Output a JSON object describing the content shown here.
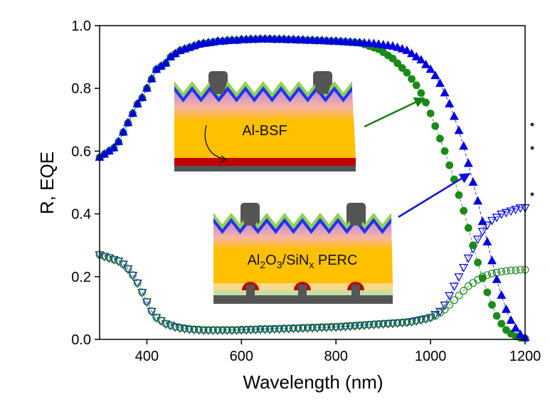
{
  "chart_data": {
    "type": "scatter-line",
    "x_label": "Wavelength (nm)",
    "y_label": "R, EQE",
    "xlim": [
      300,
      1200
    ],
    "xticks": [
      400,
      600,
      800,
      1000,
      1200
    ],
    "ylim": [
      0,
      1
    ],
    "yticks": [
      {
        "value": 0,
        "label": "0.0"
      },
      0.2,
      0.4,
      0.6,
      0.8,
      {
        "value": 1,
        "label": "1.0"
      }
    ],
    "x": [
      300,
      310,
      320,
      330,
      340,
      350,
      360,
      370,
      380,
      390,
      400,
      410,
      420,
      430,
      440,
      450,
      460,
      470,
      480,
      490,
      500,
      510,
      520,
      530,
      540,
      550,
      560,
      570,
      580,
      590,
      600,
      610,
      620,
      630,
      640,
      650,
      660,
      670,
      680,
      690,
      700,
      710,
      720,
      730,
      740,
      750,
      760,
      770,
      780,
      790,
      800,
      810,
      820,
      830,
      840,
      850,
      860,
      870,
      880,
      890,
      900,
      910,
      920,
      930,
      940,
      950,
      960,
      970,
      980,
      990,
      1000,
      1010,
      1020,
      1030,
      1040,
      1050,
      1060,
      1070,
      1080,
      1090,
      1100,
      1110,
      1120,
      1130,
      1140,
      1150,
      1160,
      1170,
      1180,
      1190,
      1200
    ],
    "series": [
      {
        "color": "#0000e0",
        "marker": "triangle-down",
        "filled": false,
        "values": [
          0.27,
          0.265,
          0.26,
          0.255,
          0.25,
          0.24,
          0.225,
          0.205,
          0.18,
          0.15,
          0.12,
          0.09,
          0.07,
          0.06,
          0.05,
          0.045,
          0.04,
          0.037,
          0.035,
          0.033,
          0.032,
          0.031,
          0.03,
          0.03,
          0.03,
          0.03,
          0.03,
          0.03,
          0.03,
          0.03,
          0.031,
          0.031,
          0.032,
          0.032,
          0.033,
          0.033,
          0.033,
          0.034,
          0.034,
          0.035,
          0.035,
          0.036,
          0.036,
          0.037,
          0.037,
          0.038,
          0.038,
          0.039,
          0.039,
          0.04,
          0.04,
          0.041,
          0.042,
          0.043,
          0.044,
          0.045,
          0.046,
          0.047,
          0.048,
          0.049,
          0.05,
          0.051,
          0.052,
          0.053,
          0.054,
          0.055,
          0.057,
          0.06,
          0.063,
          0.066,
          0.07,
          0.08,
          0.09,
          0.11,
          0.14,
          0.17,
          0.2,
          0.23,
          0.26,
          0.29,
          0.32,
          0.345,
          0.365,
          0.38,
          0.39,
          0.4,
          0.405,
          0.41,
          0.415,
          0.42,
          0.42
        ]
      },
      {
        "color": "#1a8a1a",
        "marker": "circle",
        "filled": false,
        "values": [
          0.27,
          0.265,
          0.26,
          0.255,
          0.25,
          0.24,
          0.225,
          0.205,
          0.18,
          0.15,
          0.12,
          0.09,
          0.07,
          0.06,
          0.05,
          0.045,
          0.04,
          0.037,
          0.035,
          0.033,
          0.032,
          0.031,
          0.03,
          0.03,
          0.03,
          0.03,
          0.03,
          0.03,
          0.03,
          0.03,
          0.031,
          0.031,
          0.032,
          0.032,
          0.033,
          0.033,
          0.033,
          0.034,
          0.034,
          0.035,
          0.035,
          0.036,
          0.036,
          0.037,
          0.037,
          0.038,
          0.038,
          0.039,
          0.039,
          0.04,
          0.04,
          0.041,
          0.042,
          0.043,
          0.044,
          0.045,
          0.046,
          0.047,
          0.048,
          0.049,
          0.05,
          0.051,
          0.052,
          0.053,
          0.054,
          0.055,
          0.057,
          0.06,
          0.063,
          0.066,
          0.07,
          0.075,
          0.085,
          0.095,
          0.11,
          0.125,
          0.14,
          0.155,
          0.17,
          0.18,
          0.19,
          0.2,
          0.205,
          0.21,
          0.213,
          0.216,
          0.218,
          0.22,
          0.22,
          0.222,
          0.222
        ]
      },
      {
        "color": "#1a8a1a",
        "marker": "circle",
        "filled": true,
        "values": [
          0.58,
          0.59,
          0.6,
          0.61,
          0.63,
          0.66,
          0.69,
          0.72,
          0.75,
          0.77,
          0.8,
          0.83,
          0.86,
          0.87,
          0.88,
          0.9,
          0.91,
          0.92,
          0.925,
          0.93,
          0.935,
          0.94,
          0.943,
          0.945,
          0.947,
          0.95,
          0.95,
          0.952,
          0.953,
          0.953,
          0.955,
          0.955,
          0.956,
          0.956,
          0.957,
          0.957,
          0.957,
          0.956,
          0.956,
          0.956,
          0.955,
          0.955,
          0.954,
          0.954,
          0.953,
          0.953,
          0.952,
          0.952,
          0.951,
          0.95,
          0.95,
          0.949,
          0.948,
          0.947,
          0.946,
          0.945,
          0.94,
          0.935,
          0.93,
          0.925,
          0.915,
          0.905,
          0.895,
          0.88,
          0.865,
          0.85,
          0.83,
          0.81,
          0.785,
          0.755,
          0.72,
          0.68,
          0.64,
          0.6,
          0.555,
          0.51,
          0.46,
          0.41,
          0.355,
          0.3,
          0.245,
          0.195,
          0.15,
          0.11,
          0.075,
          0.05,
          0.03,
          0.018,
          0.01,
          0.005,
          0.003
        ]
      },
      {
        "color": "#0000e0",
        "marker": "triangle-up",
        "filled": true,
        "values": [
          0.58,
          0.59,
          0.6,
          0.61,
          0.63,
          0.66,
          0.69,
          0.72,
          0.75,
          0.77,
          0.8,
          0.83,
          0.86,
          0.87,
          0.88,
          0.9,
          0.91,
          0.92,
          0.925,
          0.93,
          0.935,
          0.94,
          0.943,
          0.945,
          0.947,
          0.95,
          0.95,
          0.952,
          0.953,
          0.953,
          0.955,
          0.955,
          0.956,
          0.956,
          0.957,
          0.957,
          0.957,
          0.956,
          0.956,
          0.956,
          0.955,
          0.955,
          0.954,
          0.954,
          0.953,
          0.953,
          0.952,
          0.952,
          0.951,
          0.95,
          0.95,
          0.949,
          0.948,
          0.947,
          0.946,
          0.945,
          0.944,
          0.943,
          0.942,
          0.94,
          0.938,
          0.936,
          0.934,
          0.93,
          0.925,
          0.92,
          0.91,
          0.9,
          0.89,
          0.875,
          0.86,
          0.84,
          0.815,
          0.785,
          0.75,
          0.71,
          0.665,
          0.615,
          0.56,
          0.5,
          0.44,
          0.375,
          0.31,
          0.25,
          0.19,
          0.14,
          0.095,
          0.06,
          0.035,
          0.015,
          0.005
        ]
      }
    ]
  },
  "insets": [
    {
      "label": "Al-BSF"
    },
    {
      "label_parts": [
        "Al",
        "2",
        "O",
        "3",
        "/SiN",
        "x",
        " PERC"
      ]
    }
  ]
}
